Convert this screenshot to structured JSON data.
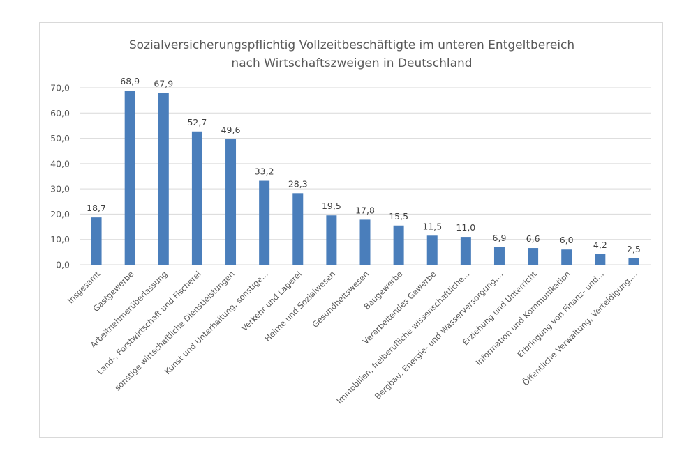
{
  "chart_data": {
    "type": "bar",
    "title": "Sozialversicherungspflichtig Vollzeitbeschäftigte im unteren Entgeltbereich",
    "subtitle": "nach Wirtschaftszweigen in Deutschland",
    "xlabel": "",
    "ylabel": "",
    "ylim": [
      0,
      70
    ],
    "y_ticks": [
      "0,0",
      "10,0",
      "20,0",
      "30,0",
      "40,0",
      "50,0",
      "60,0",
      "70,0"
    ],
    "y_tick_values": [
      0,
      10,
      20,
      30,
      40,
      50,
      60,
      70
    ],
    "grid": true,
    "legend": "none",
    "bar_color": "#4a7ebb",
    "categories": [
      "Insgesamt",
      "Gastgewerbe",
      "Arbeitnehmerüberlassung",
      "Land-, Forstwirtschaft und Fischerei",
      "sonstige wirtschaftliche Dienstleistungen",
      "Kunst und Unterhaltung, sonstige...",
      "Verkehr und Lagerei",
      "Heime und Sozialwesen",
      "Gesundheitswesen",
      "Baugewerbe",
      "Verarbeitendes Gewerbe",
      "Immobilien, freiberufliche wissenschaftliche...",
      "Bergbau, Energie- und Wasserversorgung,...",
      "Erziehung und Unterricht",
      "Information und Kommunikation",
      "Erbringung von Finanz- und...",
      "Öffentliche Verwaltung, Verteidigung,..."
    ],
    "values": [
      18.7,
      68.9,
      67.9,
      52.7,
      49.6,
      33.2,
      28.3,
      19.5,
      17.8,
      15.5,
      11.5,
      11.0,
      6.9,
      6.6,
      6.0,
      4.2,
      2.5
    ],
    "value_labels": [
      "18,7",
      "68,9",
      "67,9",
      "52,7",
      "49,6",
      "33,2",
      "28,3",
      "19,5",
      "17,8",
      "15,5",
      "11,5",
      "11,0",
      "6,9",
      "6,6",
      "6,0",
      "4,2",
      "2,5"
    ]
  }
}
